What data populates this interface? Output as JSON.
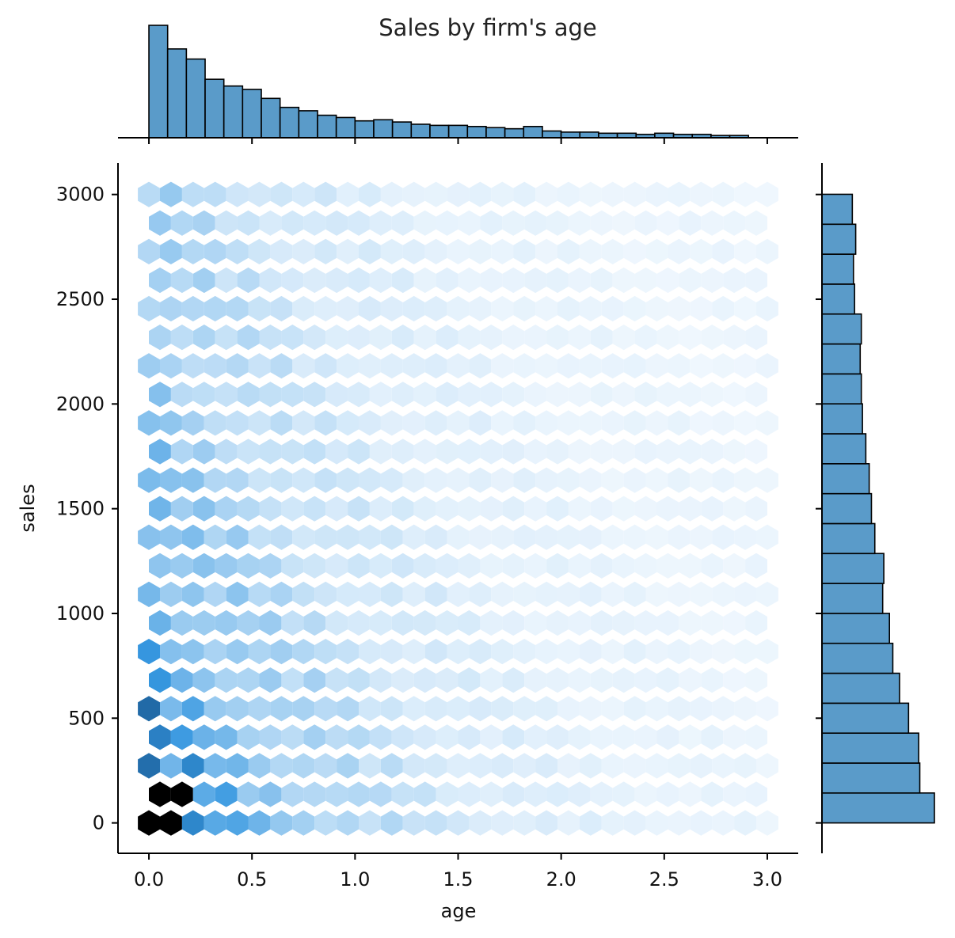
{
  "chart_data": {
    "type": "hexbin-jointplot",
    "title": "Sales by firm's age",
    "xlabel": "age",
    "ylabel": "sales",
    "xlim": [
      -0.15,
      3.15
    ],
    "ylim": [
      -145,
      3150
    ],
    "x_ticks": [
      0.0,
      0.5,
      1.0,
      1.5,
      2.0,
      2.5,
      3.0
    ],
    "x_tick_labels": [
      "0.0",
      "0.5",
      "1.0",
      "1.5",
      "2.0",
      "2.5",
      "3.0"
    ],
    "y_ticks": [
      0,
      500,
      1000,
      1500,
      2000,
      2500,
      3000
    ],
    "y_tick_labels": [
      "0",
      "500",
      "1000",
      "1500",
      "2000",
      "2500",
      "3000"
    ],
    "hexbin": {
      "gridsize": 28,
      "color": "#1f77b4",
      "max_color": "#000000",
      "x_extent": [
        0.0,
        3.0
      ],
      "y_extent": [
        0,
        3000
      ],
      "density_note": "counts highest at low age and low sales, decreasing with age and sales"
    },
    "marginal_x_hist": {
      "bin_edges_start": 0.0,
      "bin_width": 0.0909,
      "relative_counts": [
        1.0,
        0.79,
        0.7,
        0.52,
        0.46,
        0.43,
        0.35,
        0.27,
        0.24,
        0.2,
        0.18,
        0.15,
        0.16,
        0.14,
        0.12,
        0.11,
        0.11,
        0.1,
        0.09,
        0.08,
        0.1,
        0.06,
        0.05,
        0.05,
        0.04,
        0.04,
        0.03,
        0.04,
        0.03,
        0.03,
        0.02,
        0.02
      ]
    },
    "marginal_y_hist": {
      "bin_edges_start": 0,
      "bin_width": 142.9,
      "relative_counts": [
        1.0,
        0.87,
        0.86,
        0.77,
        0.69,
        0.63,
        0.6,
        0.54,
        0.55,
        0.47,
        0.44,
        0.42,
        0.39,
        0.36,
        0.35,
        0.34,
        0.35,
        0.29,
        0.28,
        0.3,
        0.27,
        0.27
      ]
    },
    "bar_color": "#5a9bc9",
    "bar_edge_color": "#000000"
  }
}
